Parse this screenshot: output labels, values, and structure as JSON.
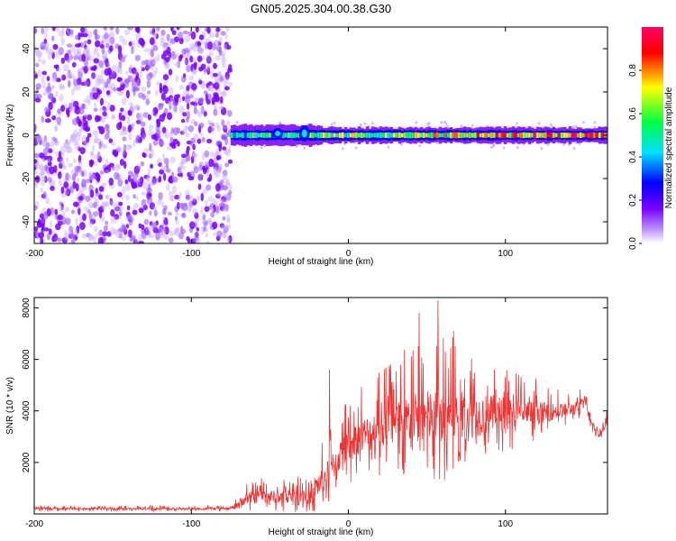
{
  "title": "GN05.2025.304.00.38.G30",
  "chart_data": [
    {
      "type": "heatmap",
      "name": "spectrogram",
      "xlabel": "Height of straight line (km)",
      "ylabel": "Frequency (Hz)",
      "xlim": [
        -200,
        165
      ],
      "ylim": [
        -50,
        50
      ],
      "xticks": [
        -200,
        -100,
        0,
        100
      ],
      "yticks": [
        -40,
        -20,
        0,
        20,
        40
      ],
      "noise_region_x": [
        -200,
        -75
      ],
      "signal_start_x": -75,
      "carrier_frequency_hz": 0,
      "colorbar": {
        "label": "Normalized spectral amplitude",
        "range": [
          0,
          1
        ],
        "ticks": [
          0.0,
          0.2,
          0.4,
          0.6,
          0.8
        ],
        "tick_labels": [
          "0.0",
          "0.2",
          "0.4",
          "0.6",
          "0.8"
        ],
        "colors": [
          "#ffffff",
          "#7a00ff",
          "#0000ff",
          "#00ffff",
          "#00ff00",
          "#ffff00",
          "#ff0000",
          "#ff0066"
        ]
      }
    },
    {
      "type": "line",
      "name": "snr",
      "xlabel": "Height of straight line (km)",
      "ylabel": "SNR (10 * v/v)",
      "xlim": [
        -200,
        165
      ],
      "ylim": [
        0,
        8400
      ],
      "xticks": [
        -200,
        -100,
        0,
        100
      ],
      "yticks": [
        2000,
        4000,
        6000,
        8000
      ],
      "color": "#ee3333",
      "envelope": {
        "x": [
          -200,
          -150,
          -100,
          -75,
          -65,
          -55,
          -45,
          -35,
          -25,
          -15,
          -5,
          5,
          15,
          25,
          35,
          45,
          55,
          65,
          75,
          85,
          95,
          105,
          115,
          125,
          135,
          145,
          150,
          155,
          160,
          165
        ],
        "mean": [
          200,
          200,
          200,
          210,
          600,
          700,
          650,
          600,
          800,
          1400,
          2300,
          2900,
          3200,
          3400,
          3600,
          3750,
          3800,
          3800,
          3800,
          3850,
          3900,
          3900,
          3900,
          3950,
          4000,
          4100,
          4400,
          3600,
          3000,
          3800
        ],
        "spread": [
          80,
          80,
          80,
          80,
          450,
          500,
          500,
          500,
          900,
          1000,
          1200,
          1300,
          1500,
          1700,
          1900,
          2000,
          2100,
          2100,
          1800,
          1600,
          1400,
          1200,
          1000,
          800,
          600,
          500,
          300,
          300,
          300,
          300
        ]
      },
      "peaks": [
        {
          "x": 57,
          "y": 8300
        },
        {
          "x": 45,
          "y": 7800
        },
        {
          "x": -12,
          "y": 5600
        },
        {
          "x": 67,
          "y": 7100
        }
      ]
    }
  ]
}
